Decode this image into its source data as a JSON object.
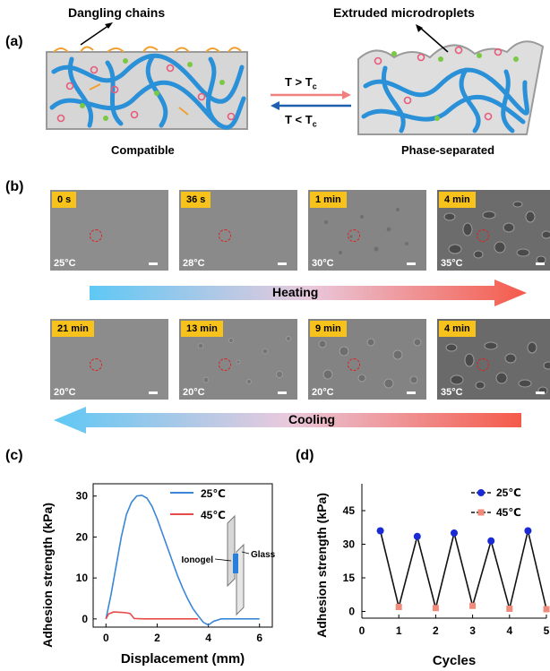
{
  "panel_a": {
    "label": "(a)",
    "dangling_label": "Dangling chains",
    "extruded_label": "Extruded microdroplets",
    "heat_condition": "T > T",
    "heat_sub": "c",
    "cool_condition": "T < T",
    "cool_sub": "c",
    "left_caption": "Compatible",
    "right_caption": "Phase-separated"
  },
  "panel_b": {
    "label": "(b)",
    "heating_label": "Heating",
    "cooling_label": "Cooling",
    "heating_row": [
      {
        "time": "0 s",
        "temp": "25°C"
      },
      {
        "time": "36 s",
        "temp": "28°C"
      },
      {
        "time": "1 min",
        "temp": "30°C"
      },
      {
        "time": "4 min",
        "temp": "35°C"
      }
    ],
    "cooling_row": [
      {
        "time": "21 min",
        "temp": "20°C"
      },
      {
        "time": "13 min",
        "temp": "20°C"
      },
      {
        "time": "9 min",
        "temp": "20°C"
      },
      {
        "time": "4 min",
        "temp": "35°C"
      }
    ]
  },
  "panel_c": {
    "label": "(c)",
    "inset_ionogel": "Ionogel",
    "inset_glass": "Glass"
  },
  "panel_d": {
    "label": "(d)"
  },
  "chart_data": [
    {
      "type": "line",
      "xlabel": "Displacement (mm)",
      "ylabel": "Adhesion strength (kPa)",
      "xlim": [
        -0.5,
        6.5
      ],
      "ylim": [
        -2,
        33
      ],
      "xticks": [
        "0",
        "2",
        "4",
        "6"
      ],
      "yticks": [
        "0",
        "10",
        "20",
        "30"
      ],
      "legend_position": "top-right",
      "series": [
        {
          "name": "25℃",
          "color": "#3a86d8",
          "x": [
            0,
            0.2,
            0.4,
            0.6,
            0.8,
            1.0,
            1.2,
            1.4,
            1.6,
            1.8,
            2.0,
            2.2,
            2.4,
            2.6,
            2.8,
            3.0,
            3.2,
            3.4,
            3.6,
            3.8,
            4.0,
            4.2,
            4.5,
            5.0,
            5.5,
            6.0
          ],
          "y": [
            0,
            6,
            13,
            20,
            25.5,
            28.5,
            30,
            30.2,
            29.5,
            27.5,
            24.5,
            21,
            17.5,
            14,
            10.5,
            7.5,
            4.8,
            2.5,
            0.8,
            -0.8,
            -1.5,
            -0.6,
            0,
            0,
            0,
            0
          ]
        },
        {
          "name": "45℃",
          "color": "#e84a4a",
          "x": [
            0,
            0.1,
            0.3,
            0.6,
            0.8,
            0.95,
            1.1,
            1.5,
            2.0,
            2.5,
            3.0,
            3.6
          ],
          "y": [
            0,
            1.2,
            1.7,
            1.6,
            1.5,
            1.3,
            0.1,
            0,
            0,
            0,
            0,
            0
          ]
        }
      ]
    },
    {
      "type": "line",
      "xlabel": "Cycles",
      "ylabel": "Adhesion strength (kPa)",
      "xlim": [
        0,
        5
      ],
      "ylim": [
        -3,
        57
      ],
      "xticks": [
        "0",
        "1",
        "2",
        "3",
        "4",
        "5"
      ],
      "yticks": [
        "0",
        "15",
        "30",
        "45"
      ],
      "legend_position": "top-right",
      "series": [
        {
          "name": "25℃",
          "color": "#1a2bd6",
          "marker": "circle",
          "x": [
            0.5,
            1.5,
            2.5,
            3.5,
            4.5
          ],
          "y": [
            36,
            33.5,
            35,
            31.5,
            36
          ]
        },
        {
          "name": "45℃",
          "color": "#f08a7a",
          "marker": "square",
          "x": [
            1,
            2,
            3,
            4,
            5
          ],
          "y": [
            2,
            1.5,
            2.5,
            1.2,
            1
          ]
        }
      ]
    }
  ]
}
